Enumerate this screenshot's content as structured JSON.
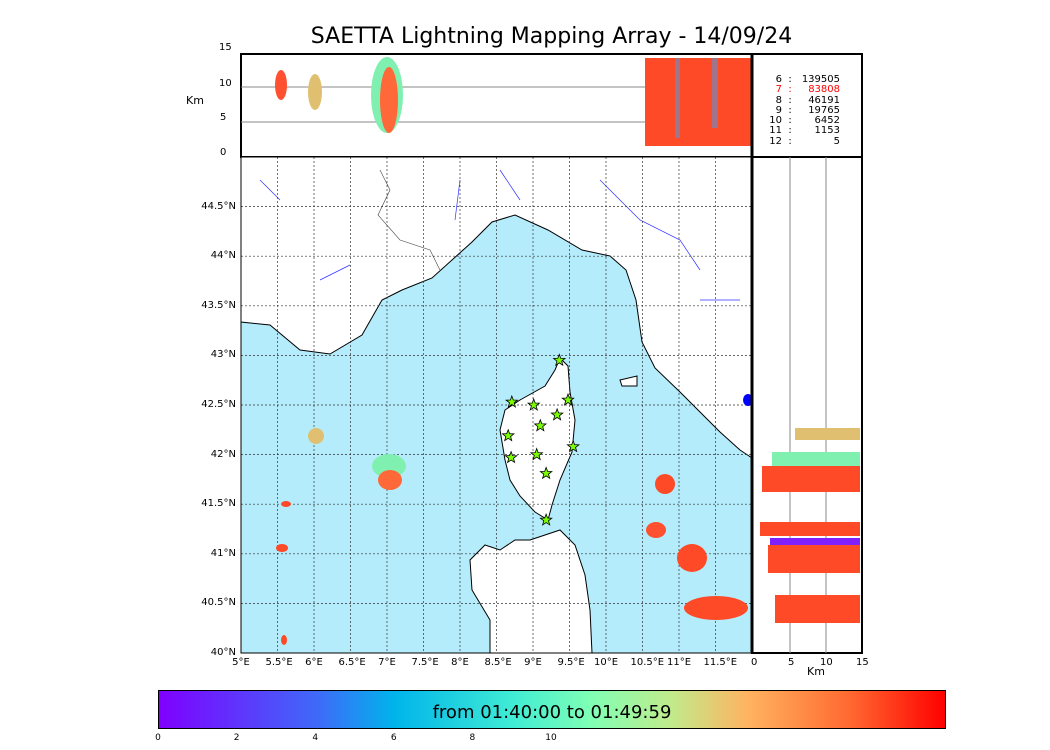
{
  "chart_data": {
    "type": "scatter",
    "title": "SAETTA Lightning Mapping Array - 14/09/24",
    "map": {
      "lon_range": [
        5,
        12
      ],
      "lat_range": [
        40,
        45
      ],
      "lon_ticks": [
        "5°E",
        "5.5°E",
        "6°E",
        "6.5°E",
        "7°E",
        "7.5°E",
        "8°E",
        "8.5°E",
        "9°E",
        "9.5°E",
        "10°E",
        "10.5°E",
        "11°E",
        "11.5°E"
      ],
      "lat_ticks": [
        "40°N",
        "40.5°N",
        "41°N",
        "41.5°N",
        "42°N",
        "42.5°N",
        "43°N",
        "43.5°N",
        "44°N",
        "44.5°N"
      ],
      "grid": true
    },
    "altitude_panel": {
      "ylabel": "Km",
      "yticks": [
        "0",
        "5",
        "10",
        "15"
      ],
      "ylim": [
        0,
        15
      ]
    },
    "side_panel": {
      "xlabel": "Km",
      "xticks": [
        "0",
        "5",
        "10",
        "15"
      ],
      "xlim": [
        0,
        15
      ]
    },
    "stations": [
      [
        9.36,
        42.95
      ],
      [
        8.71,
        42.53
      ],
      [
        9.01,
        42.5
      ],
      [
        9.48,
        42.55
      ],
      [
        9.33,
        42.4
      ],
      [
        9.1,
        42.29
      ],
      [
        8.66,
        42.19
      ],
      [
        9.55,
        42.08
      ],
      [
        9.05,
        42.0
      ],
      [
        8.7,
        41.97
      ],
      [
        9.18,
        41.81
      ],
      [
        9.18,
        41.34
      ]
    ],
    "station_count_legend": [
      {
        "n": "6",
        "sep": ":",
        "v": "139505",
        "color": "#000000"
      },
      {
        "n": "7",
        "sep": ":",
        "v": "83808",
        "color": "#ff0000"
      },
      {
        "n": "8",
        "sep": ":",
        "v": "46191",
        "color": "#000000"
      },
      {
        "n": "9",
        "sep": ":",
        "v": "19765",
        "color": "#000000"
      },
      {
        "n": "10",
        "sep": ":",
        "v": "6452",
        "color": "#000000"
      },
      {
        "n": "11",
        "sep": ":",
        "v": "1153",
        "color": "#000000"
      },
      {
        "n": "12",
        "sep": ":",
        "v": "5",
        "color": "#000000"
      }
    ],
    "colorbar": {
      "label": "from 01:40:00 to 01:49:59",
      "ticks": [
        "0",
        "2",
        "4",
        "6",
        "8",
        "10"
      ],
      "range": [
        0,
        10
      ]
    }
  }
}
